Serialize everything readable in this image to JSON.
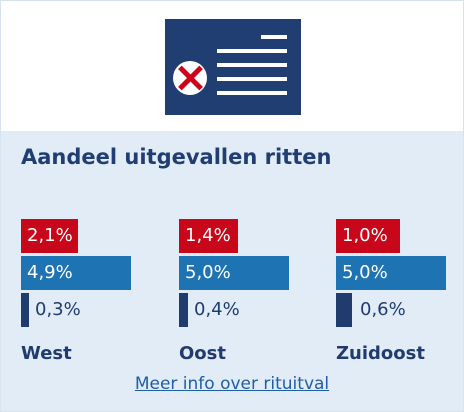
{
  "title": "Aandeel uitgevallen ritten",
  "colors": {
    "red": "#c8081a",
    "blue": "#1e74b2",
    "navy": "#203c6e",
    "panel_background": "#e2ecf6"
  },
  "icon": "document-with-cross-icon",
  "regions": [
    {
      "name": "West",
      "red_label": "2,1%",
      "blue_label": "4,9%",
      "navy_label": "0,3%",
      "red_value": 2.1,
      "blue_value": 4.9,
      "navy_value": 0.3
    },
    {
      "name": "Oost",
      "red_label": "1,4%",
      "blue_label": "5,0%",
      "navy_label": "0,4%",
      "red_value": 1.4,
      "blue_value": 5.0,
      "navy_value": 0.4
    },
    {
      "name": "Zuidoost",
      "red_label": "1,0%",
      "blue_label": "5,0%",
      "navy_label": "0,6%",
      "red_value": 1.0,
      "blue_value": 5.0,
      "navy_value": 0.6
    }
  ],
  "link_text": "Meer info over rituitval"
}
